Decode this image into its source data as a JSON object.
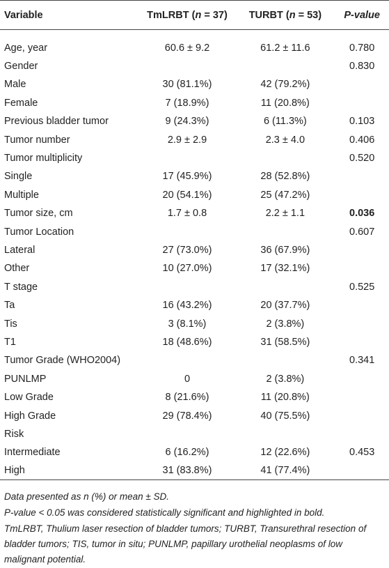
{
  "table": {
    "header": [
      {
        "parts": [
          "Variable"
        ]
      },
      {
        "parts": [
          "TmLRBT (",
          "n",
          " = 37)"
        ]
      },
      {
        "parts": [
          "TURBT (",
          "n",
          " = 53)"
        ]
      },
      {
        "parts": [
          "P",
          "-value"
        ]
      }
    ],
    "header_italic_parts": [
      [],
      [
        1
      ],
      [
        1
      ],
      [
        0,
        1
      ]
    ],
    "rows": [
      [
        "Age, year",
        "60.6 ± 9.2",
        "61.2 ± 11.6",
        "0.780"
      ],
      [
        "Gender",
        "",
        "",
        "0.830"
      ],
      [
        "Male",
        "30 (81.1%)",
        "42 (79.2%)",
        ""
      ],
      [
        "Female",
        "7 (18.9%)",
        "11 (20.8%)",
        ""
      ],
      [
        "Previous bladder tumor",
        "9 (24.3%)",
        "6 (11.3%)",
        "0.103"
      ],
      [
        "Tumor number",
        "2.9 ± 2.9",
        "2.3 ± 4.0",
        "0.406"
      ],
      [
        "Tumor multiplicity",
        "",
        "",
        "0.520"
      ],
      [
        "Single",
        "17 (45.9%)",
        "28 (52.8%)",
        ""
      ],
      [
        "Multiple",
        "20 (54.1%)",
        "25 (47.2%)",
        ""
      ],
      [
        "Tumor size, cm",
        "1.7 ± 0.8",
        "2.2 ± 1.1",
        "0.036"
      ],
      [
        "Tumor Location",
        "",
        "",
        "0.607"
      ],
      [
        "Lateral",
        "27 (73.0%)",
        "36 (67.9%)",
        ""
      ],
      [
        "Other",
        "10 (27.0%)",
        "17 (32.1%)",
        ""
      ],
      [
        "T stage",
        "",
        "",
        "0.525"
      ],
      [
        "Ta",
        "16 (43.2%)",
        "20 (37.7%)",
        ""
      ],
      [
        "Tis",
        "3 (8.1%)",
        "2 (3.8%)",
        ""
      ],
      [
        "T1",
        "18 (48.6%)",
        "31 (58.5%)",
        ""
      ],
      [
        "Tumor Grade (WHO2004)",
        "",
        "",
        "0.341"
      ],
      [
        "PUNLMP",
        "0",
        "2 (3.8%)",
        ""
      ],
      [
        "Low Grade",
        "8 (21.6%)",
        "11 (20.8%)",
        ""
      ],
      [
        "High Grade",
        "29 (78.4%)",
        "40 (75.5%)",
        ""
      ],
      [
        "Risk",
        "",
        "",
        ""
      ],
      [
        "Intermediate",
        "6 (16.2%)",
        "12 (22.6%)",
        "0.453"
      ],
      [
        "High",
        "31 (83.8%)",
        "41 (77.4%)",
        ""
      ]
    ],
    "bold_cells": [
      [
        9,
        3
      ]
    ]
  },
  "notes": [
    "Data presented as n (%) or mean ± SD.",
    "P-value < 0.05 was considered statistically significant and highlighted in bold.",
    "TmLRBT, Thulium laser resection of bladder tumors; TURBT, Transurethral resection of bladder tumors; TIS, tumor in situ; PUNLMP, papillary urothelial neoplasms of low malignant potential."
  ]
}
